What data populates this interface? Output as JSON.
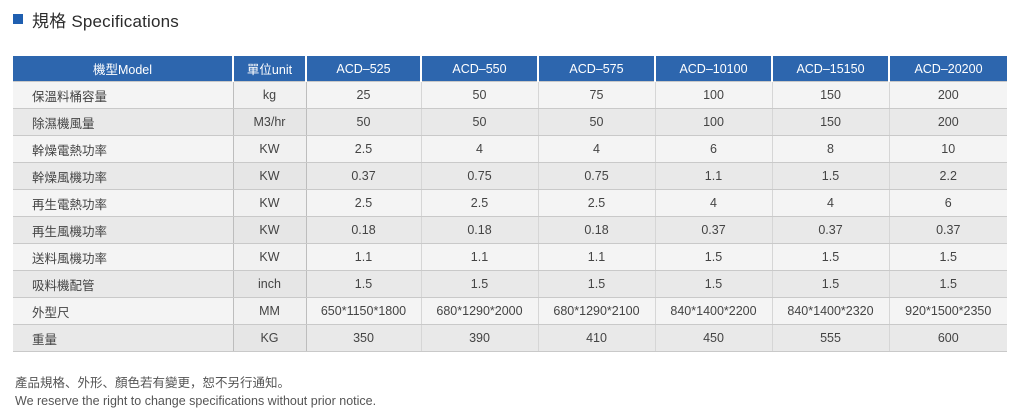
{
  "header": {
    "title": "規格 Specifications"
  },
  "table": {
    "columns": [
      "機型Model",
      "單位unit",
      "ACD–525",
      "ACD–550",
      "ACD–575",
      "ACD–10100",
      "ACD–15150",
      "ACD–20200"
    ],
    "rows": [
      {
        "name": "保溫料桶容量",
        "unit": "kg",
        "values": [
          "25",
          "50",
          "75",
          "100",
          "150",
          "200"
        ]
      },
      {
        "name": "除濕機風量",
        "unit": "M3/hr",
        "values": [
          "50",
          "50",
          "50",
          "100",
          "150",
          "200"
        ]
      },
      {
        "name": "幹燥電熱功率",
        "unit": "KW",
        "values": [
          "2.5",
          "4",
          "4",
          "6",
          "8",
          "10"
        ]
      },
      {
        "name": "幹燥風機功率",
        "unit": "KW",
        "values": [
          "0.37",
          "0.75",
          "0.75",
          "1.1",
          "1.5",
          "2.2"
        ]
      },
      {
        "name": "再生電熱功率",
        "unit": "KW",
        "values": [
          "2.5",
          "2.5",
          "2.5",
          "4",
          "4",
          "6"
        ]
      },
      {
        "name": "再生風機功率",
        "unit": "KW",
        "values": [
          "0.18",
          "0.18",
          "0.18",
          "0.37",
          "0.37",
          "0.37"
        ]
      },
      {
        "name": "送料風機功率",
        "unit": "KW",
        "values": [
          "1.1",
          "1.1",
          "1.1",
          "1.5",
          "1.5",
          "1.5"
        ]
      },
      {
        "name": "吸料機配管",
        "unit": "inch",
        "values": [
          "1.5",
          "1.5",
          "1.5",
          "1.5",
          "1.5",
          "1.5"
        ]
      },
      {
        "name": "外型尺",
        "unit": "MM",
        "values": [
          "650*1150*1800",
          "680*1290*2000",
          "680*1290*2100",
          "840*1400*2200",
          "840*1400*2320",
          "920*1500*2350"
        ]
      },
      {
        "name": "重量",
        "unit": "KG",
        "values": [
          "350",
          "390",
          "410",
          "450",
          "555",
          "600"
        ]
      }
    ]
  },
  "notes": {
    "zh": "產品規格、外形、顏色若有變更，恕不另行通知。",
    "en": "We reserve the right to change specifications without prior notice."
  },
  "colors": {
    "accent": "#2d66ae",
    "row_light": "#f4f4f4",
    "row_dark": "#e9e9e9"
  }
}
